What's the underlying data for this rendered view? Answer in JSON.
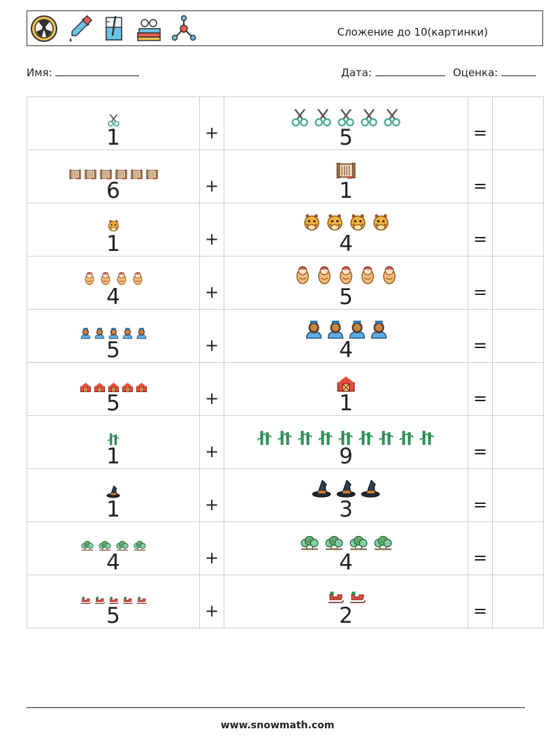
{
  "header": {
    "icons": [
      "radiation-icon",
      "pipette-icon",
      "beaker-icon",
      "books-glasses-icon",
      "molecule-icon"
    ],
    "title": "Сложение до 10(картинки)"
  },
  "info": {
    "name_label": "Имя:",
    "date_label": "Дата:",
    "score_label": "Оценка:"
  },
  "operators": {
    "plus": "+",
    "equals": "="
  },
  "problems": [
    {
      "a": 1,
      "b": 5,
      "a_text": "1",
      "b_text": "5",
      "icon": "scissors-icon"
    },
    {
      "a": 6,
      "b": 1,
      "a_text": "6",
      "b_text": "1",
      "icon": "scroll-icon"
    },
    {
      "a": 1,
      "b": 4,
      "a_text": "1",
      "b_text": "4",
      "icon": "giraffe-icon"
    },
    {
      "a": 4,
      "b": 5,
      "a_text": "4",
      "b_text": "5",
      "icon": "swaddled-baby-icon"
    },
    {
      "a": 5,
      "b": 4,
      "a_text": "5",
      "b_text": "4",
      "icon": "nurse-icon"
    },
    {
      "a": 5,
      "b": 1,
      "a_text": "5",
      "b_text": "1",
      "icon": "barn-icon"
    },
    {
      "a": 1,
      "b": 9,
      "a_text": "1",
      "b_text": "9",
      "icon": "bamboo-icon"
    },
    {
      "a": 1,
      "b": 3,
      "a_text": "1",
      "b_text": "3",
      "icon": "witch-hat-icon"
    },
    {
      "a": 4,
      "b": 4,
      "a_text": "4",
      "b_text": "4",
      "icon": "bushes-icon"
    },
    {
      "a": 5,
      "b": 2,
      "a_text": "5",
      "b_text": "2",
      "icon": "sleigh-icon"
    }
  ],
  "footer": {
    "url": "www.snowmath.com"
  }
}
